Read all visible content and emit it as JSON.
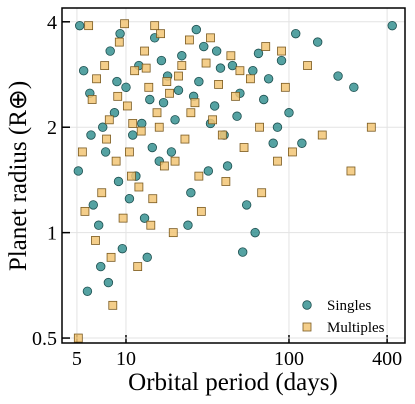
{
  "chart_data": {
    "type": "scatter",
    "xlabel": "Orbital period (days)",
    "ylabel": "Planet radius (R⊕)",
    "xscale": "log",
    "yscale": "log",
    "xlim": [
      4.05,
      515
    ],
    "ylim": [
      0.484,
      4.38
    ],
    "xticks": [
      5,
      10,
      100,
      400
    ],
    "yticks": [
      0.5,
      1,
      2,
      4
    ],
    "grid": true,
    "legend": "lower right",
    "series": [
      {
        "name": "Singles",
        "color": "#2a8b8b",
        "marker": "circle",
        "x": [
          5.2,
          5.5,
          6,
          6.3,
          7,
          7.5,
          8,
          8.5,
          9,
          9.5,
          10,
          11,
          12,
          13,
          14,
          15,
          16,
          18,
          20,
          22,
          25,
          28,
          30,
          35,
          40,
          45,
          50,
          55,
          60,
          70,
          80,
          90,
          100,
          120,
          150,
          200,
          250,
          430,
          5.8,
          6.8,
          7.2,
          9.2,
          11.5,
          13.5,
          17,
          19,
          21,
          24,
          27,
          33,
          38,
          42,
          48,
          65,
          75,
          85,
          5.1,
          6.1,
          7.8,
          10.5,
          12.5,
          14.5,
          26,
          32,
          36,
          52,
          110,
          62,
          8.8,
          16.5
        ],
        "y": [
          3.9,
          2.9,
          2.5,
          1.2,
          0.8,
          1.7,
          3.3,
          2.2,
          1.4,
          0.9,
          2.6,
          1.9,
          3.0,
          1.1,
          2.4,
          3.6,
          1.6,
          2.8,
          2.1,
          3.2,
          1.3,
          2.7,
          3.4,
          2.3,
          1.9,
          3.0,
          2.5,
          1.2,
          2.9,
          2.4,
          1.8,
          3.1,
          2.2,
          1.8,
          3.5,
          2.8,
          2.6,
          3.9,
          0.68,
          1.05,
          2.0,
          3.7,
          1.45,
          0.85,
          2.35,
          1.7,
          2.55,
          1.05,
          3.8,
          2.05,
          2.95,
          1.55,
          2.15,
          3.25,
          2.75,
          2.0,
          1.5,
          1.9,
          0.72,
          1.25,
          2.05,
          1.75,
          2.45,
          1.5,
          3.3,
          0.88,
          3.7,
          1.0,
          2.7,
          3.1
        ]
      },
      {
        "name": "Multiples",
        "color": "#f2c675",
        "marker": "square",
        "x": [
          5.1,
          5.4,
          5.9,
          6.2,
          6.5,
          7.1,
          7.4,
          7.9,
          8.3,
          8.7,
          9.1,
          9.6,
          10.2,
          10.8,
          11.3,
          11.8,
          12.4,
          13,
          13.8,
          14.6,
          15.5,
          16.3,
          17.2,
          18.5,
          19.5,
          21,
          23,
          24.5,
          26.5,
          29,
          31,
          34,
          37,
          41,
          44,
          47,
          53,
          58,
          66,
          72,
          85,
          95,
          105,
          130,
          160,
          240,
          320,
          5.6,
          6.6,
          7.6,
          8.1,
          8.9,
          9.8,
          10.5,
          11,
          12,
          13.3,
          14.2,
          15,
          16,
          17.8,
          20,
          22,
          25,
          28,
          33,
          39,
          50,
          68,
          90
        ],
        "y": [
          0.5,
          1.7,
          3.9,
          2.4,
          0.95,
          1.3,
          3.0,
          2.1,
          0.62,
          1.6,
          3.5,
          1.1,
          2.3,
          1.45,
          2.9,
          0.8,
          1.95,
          3.3,
          2.6,
          1.25,
          2.2,
          3.7,
          1.55,
          2.5,
          1.0,
          2.8,
          1.85,
          3.55,
          2.35,
          1.15,
          3.05,
          2.1,
          2.65,
          1.4,
          3.2,
          2.45,
          1.75,
          2.75,
          2.0,
          3.4,
          1.6,
          2.6,
          1.7,
          3.0,
          1.9,
          1.5,
          2.0,
          1.15,
          2.75,
          1.85,
          0.85,
          2.45,
          3.95,
          1.7,
          2.05,
          1.35,
          2.95,
          1.05,
          3.9,
          2.0,
          2.7,
          1.6,
          3.0,
          2.2,
          1.45,
          3.6,
          1.9,
          2.9,
          1.3,
          3.3
        ]
      }
    ]
  }
}
